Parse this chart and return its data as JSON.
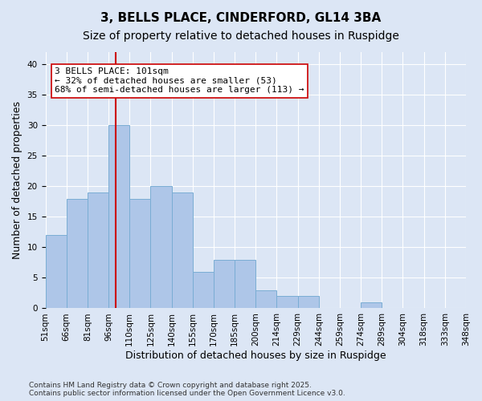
{
  "title": "3, BELLS PLACE, CINDERFORD, GL14 3BA",
  "subtitle": "Size of property relative to detached houses in Ruspidge",
  "xlabel": "Distribution of detached houses by size in Ruspidge",
  "ylabel": "Number of detached properties",
  "bin_labels": [
    "51sqm",
    "66sqm",
    "81sqm",
    "96sqm",
    "110sqm",
    "125sqm",
    "140sqm",
    "155sqm",
    "170sqm",
    "185sqm",
    "200sqm",
    "214sqm",
    "229sqm",
    "244sqm",
    "259sqm",
    "274sqm",
    "289sqm",
    "304sqm",
    "318sqm",
    "333sqm",
    "348sqm"
  ],
  "values": [
    12,
    18,
    19,
    30,
    18,
    20,
    19,
    6,
    8,
    8,
    3,
    2,
    2,
    0,
    0,
    1,
    0,
    0,
    0,
    0
  ],
  "bar_color": "#aec6e8",
  "bar_edgecolor": "#7aadd4",
  "vline_x": 3.33,
  "vline_color": "#cc0000",
  "annotation_text": "3 BELLS PLACE: 101sqm\n← 32% of detached houses are smaller (53)\n68% of semi-detached houses are larger (113) →",
  "annotation_box_facecolor": "#ffffff",
  "annotation_box_edgecolor": "#cc0000",
  "ylim": [
    0,
    42
  ],
  "yticks": [
    0,
    5,
    10,
    15,
    20,
    25,
    30,
    35,
    40
  ],
  "background_color": "#dce6f5",
  "plot_bg_color": "#dce6f5",
  "grid_color": "#ffffff",
  "footer": "Contains HM Land Registry data © Crown copyright and database right 2025.\nContains public sector information licensed under the Open Government Licence v3.0.",
  "title_fontsize": 11,
  "subtitle_fontsize": 10,
  "axis_label_fontsize": 9,
  "tick_fontsize": 7.5,
  "annotation_fontsize": 8,
  "footer_fontsize": 6.5
}
